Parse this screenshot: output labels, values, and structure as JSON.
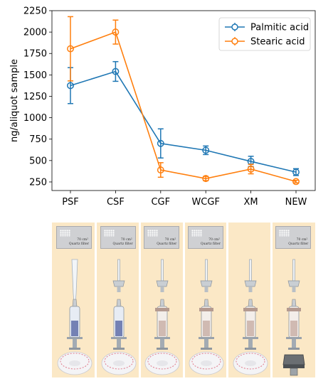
{
  "chart_data": {
    "type": "line",
    "categories": [
      "PSF",
      "CSF",
      "CGF",
      "WCGF",
      "XM",
      "NEW"
    ],
    "ylabel": "ng/aliquot sample",
    "xlabel": "",
    "ylim": [
      150,
      2250
    ],
    "yticks": [
      250,
      500,
      750,
      1000,
      1250,
      1500,
      1750,
      2000,
      2250
    ],
    "legend_position": "top-right",
    "series": [
      {
        "name": "Palmitic acid",
        "color": "#1f77b4",
        "values": [
          1375,
          1540,
          700,
          620,
          490,
          365
        ],
        "errors": [
          210,
          115,
          170,
          50,
          60,
          40
        ]
      },
      {
        "name": "Stearic acid",
        "color": "#ff7f0e",
        "values": [
          1805,
          2000,
          390,
          290,
          400,
          255
        ],
        "errors": [
          375,
          140,
          85,
          25,
          55,
          15
        ]
      }
    ]
  },
  "illustration": {
    "background_color": "#fbe8c6",
    "filter_caption_line1": "70 cm²",
    "filter_caption_line2": "Quartz filter",
    "columns": [
      {
        "label": "PSF",
        "card": true,
        "tip": "pipette-tip",
        "syringe": "plastic-syringe",
        "base": "filter-capsule"
      },
      {
        "label": "CSF",
        "card": true,
        "tip": "needle-adapter",
        "syringe": "plastic-syringe",
        "base": "filter-capsule"
      },
      {
        "label": "CGF",
        "card": true,
        "tip": "needle-adapter",
        "syringe": "glass-syringe",
        "base": "filter-capsule"
      },
      {
        "label": "WCGF",
        "card": true,
        "tip": "needle-adapter",
        "syringe": "glass-syringe",
        "base": "filter-capsule"
      },
      {
        "label": "XM",
        "card": false,
        "tip": "needle-adapter",
        "syringe": "glass-syringe",
        "base": "filter-capsule"
      },
      {
        "label": "NEW",
        "card": true,
        "tip": "needle-adapter",
        "syringe": "glass-syringe",
        "base": "metal-filter-holder"
      }
    ]
  }
}
